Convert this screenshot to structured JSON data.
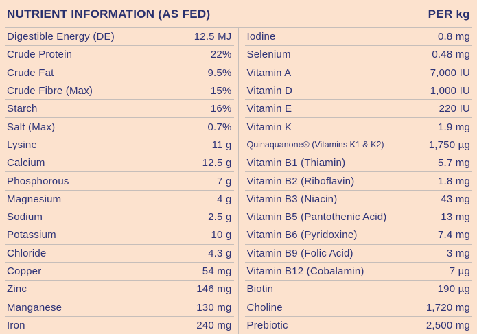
{
  "header": {
    "title": "NUTRIENT INFORMATION (AS FED)",
    "unit_label": "PER kg"
  },
  "colors": {
    "background": "#fce2ce",
    "text": "#2e3377",
    "heading": "#29306e",
    "divider": "#c6beba"
  },
  "table": {
    "left_rows": [
      {
        "label": "Digestible Energy (DE)",
        "value": "12.5 MJ"
      },
      {
        "label": "Crude Protein",
        "value": "22%"
      },
      {
        "label": "Crude Fat",
        "value": "9.5%"
      },
      {
        "label": "Crude Fibre (Max)",
        "value": "15%"
      },
      {
        "label": "Starch",
        "value": "16%"
      },
      {
        "label": "Salt (Max)",
        "value": "0.7%"
      },
      {
        "label": "Lysine",
        "value": "11 g"
      },
      {
        "label": "Calcium",
        "value": "12.5 g"
      },
      {
        "label": "Phosphorous",
        "value": "7 g"
      },
      {
        "label": "Magnesium",
        "value": "4 g"
      },
      {
        "label": "Sodium",
        "value": "2.5 g"
      },
      {
        "label": "Potassium",
        "value": "10 g"
      },
      {
        "label": "Chloride",
        "value": "4.3 g"
      },
      {
        "label": "Copper",
        "value": "54 mg"
      },
      {
        "label": "Zinc",
        "value": "146 mg"
      },
      {
        "label": "Manganese",
        "value": "130 mg"
      },
      {
        "label": "Iron",
        "value": "240 mg"
      }
    ],
    "right_rows": [
      {
        "label": "Iodine",
        "value": "0.8 mg"
      },
      {
        "label": "Selenium",
        "value": "0.48 mg"
      },
      {
        "label": "Vitamin A",
        "value": "7,000 IU"
      },
      {
        "label": "Vitamin D",
        "value": "1,000 IU"
      },
      {
        "label": "Vitamin E",
        "value": "220 IU"
      },
      {
        "label": "Vitamin K",
        "value": "1.9 mg"
      },
      {
        "label": "Quinaquanone® (Vitamins K1 & K2)",
        "value": "1,750 µg",
        "small": true
      },
      {
        "label": "Vitamin B1 (Thiamin)",
        "value": "5.7 mg"
      },
      {
        "label": "Vitamin B2 (Riboflavin)",
        "value": "1.8 mg"
      },
      {
        "label": "Vitamin B3 (Niacin)",
        "value": "43 mg"
      },
      {
        "label": "Vitamin B5 (Pantothenic Acid)",
        "value": "13 mg"
      },
      {
        "label": "Vitamin B6 (Pyridoxine)",
        "value": "7.4 mg"
      },
      {
        "label": "Vitamin B9 (Folic Acid)",
        "value": "3 mg"
      },
      {
        "label": "Vitamin B12 (Cobalamin)",
        "value": "7 µg"
      },
      {
        "label": "Biotin",
        "value": "190 µg"
      },
      {
        "label": "Choline",
        "value": "1,720 mg"
      },
      {
        "label": "Prebiotic",
        "value": "2,500 mg"
      }
    ]
  }
}
